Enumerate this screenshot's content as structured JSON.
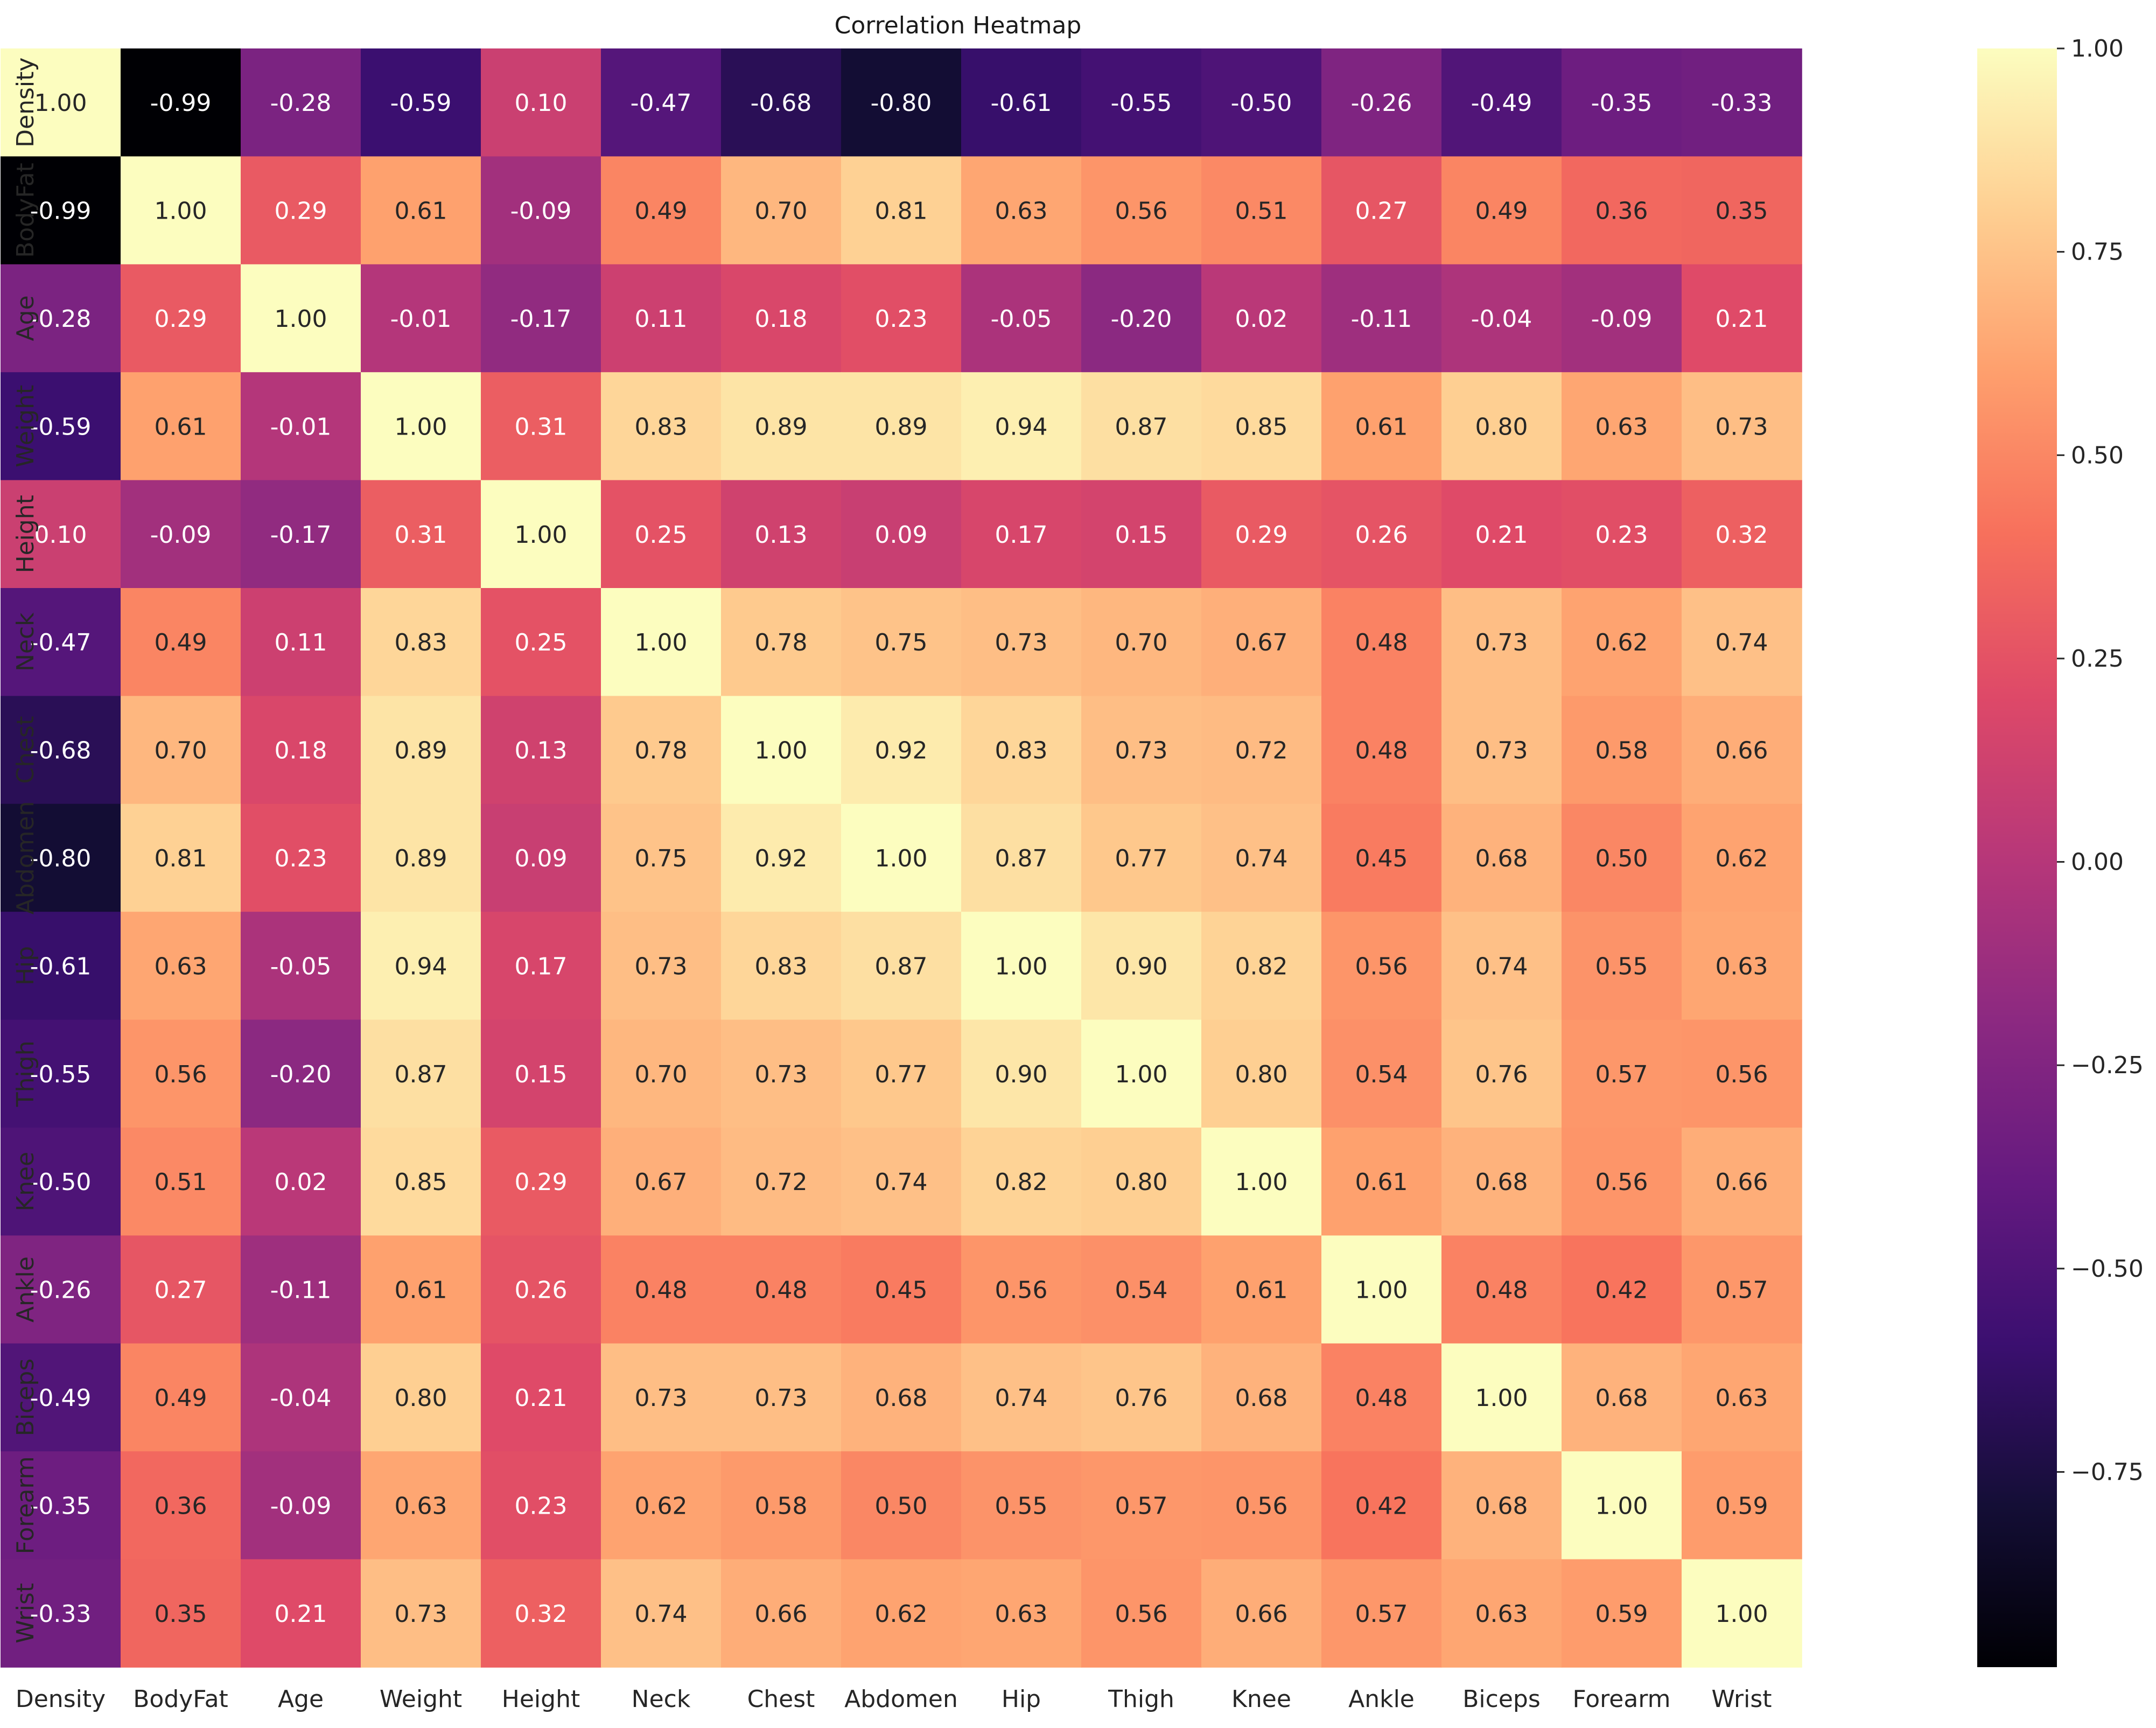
{
  "chart_data": {
    "type": "heatmap",
    "title": "Correlation Heatmap",
    "xlabel": "",
    "ylabel": "",
    "colormap": "magma",
    "color_range": [
      -0.99,
      1.0
    ],
    "colorbar_ticks": [
      1.0,
      0.75,
      0.5,
      0.25,
      0.0,
      -0.25,
      -0.5,
      -0.75
    ],
    "colorbar_tick_labels": [
      "1.00",
      "0.75",
      "0.50",
      "0.25",
      "0.00",
      "−0.25",
      "−0.50",
      "−0.75"
    ],
    "variables": [
      "Density",
      "BodyFat",
      "Age",
      "Weight",
      "Height",
      "Neck",
      "Chest",
      "Abdomen",
      "Hip",
      "Thigh",
      "Knee",
      "Ankle",
      "Biceps",
      "Forearm",
      "Wrist"
    ],
    "values": [
      [
        1.0,
        -0.99,
        -0.28,
        -0.59,
        0.1,
        -0.47,
        -0.68,
        -0.8,
        -0.61,
        -0.55,
        -0.5,
        -0.26,
        -0.49,
        -0.35,
        -0.33
      ],
      [
        -0.99,
        1.0,
        0.29,
        0.61,
        -0.09,
        0.49,
        0.7,
        0.81,
        0.63,
        0.56,
        0.51,
        0.27,
        0.49,
        0.36,
        0.35
      ],
      [
        -0.28,
        0.29,
        1.0,
        -0.01,
        -0.17,
        0.11,
        0.18,
        0.23,
        -0.05,
        -0.2,
        0.02,
        -0.11,
        -0.04,
        -0.09,
        0.21
      ],
      [
        -0.59,
        0.61,
        -0.01,
        1.0,
        0.31,
        0.83,
        0.89,
        0.89,
        0.94,
        0.87,
        0.85,
        0.61,
        0.8,
        0.63,
        0.73
      ],
      [
        0.1,
        -0.09,
        -0.17,
        0.31,
        1.0,
        0.25,
        0.13,
        0.09,
        0.17,
        0.15,
        0.29,
        0.26,
        0.21,
        0.23,
        0.32
      ],
      [
        -0.47,
        0.49,
        0.11,
        0.83,
        0.25,
        1.0,
        0.78,
        0.75,
        0.73,
        0.7,
        0.67,
        0.48,
        0.73,
        0.62,
        0.74
      ],
      [
        -0.68,
        0.7,
        0.18,
        0.89,
        0.13,
        0.78,
        1.0,
        0.92,
        0.83,
        0.73,
        0.72,
        0.48,
        0.73,
        0.58,
        0.66
      ],
      [
        -0.8,
        0.81,
        0.23,
        0.89,
        0.09,
        0.75,
        0.92,
        1.0,
        0.87,
        0.77,
        0.74,
        0.45,
        0.68,
        0.5,
        0.62
      ],
      [
        -0.61,
        0.63,
        -0.05,
        0.94,
        0.17,
        0.73,
        0.83,
        0.87,
        1.0,
        0.9,
        0.82,
        0.56,
        0.74,
        0.55,
        0.63
      ],
      [
        -0.55,
        0.56,
        -0.2,
        0.87,
        0.15,
        0.7,
        0.73,
        0.77,
        0.9,
        1.0,
        0.8,
        0.54,
        0.76,
        0.57,
        0.56
      ],
      [
        -0.5,
        0.51,
        0.02,
        0.85,
        0.29,
        0.67,
        0.72,
        0.74,
        0.82,
        0.8,
        1.0,
        0.61,
        0.68,
        0.56,
        0.66
      ],
      [
        -0.26,
        0.27,
        -0.11,
        0.61,
        0.26,
        0.48,
        0.48,
        0.45,
        0.56,
        0.54,
        0.61,
        1.0,
        0.48,
        0.42,
        0.57
      ],
      [
        -0.49,
        0.49,
        -0.04,
        0.8,
        0.21,
        0.73,
        0.73,
        0.68,
        0.74,
        0.76,
        0.68,
        0.48,
        1.0,
        0.68,
        0.63
      ],
      [
        -0.35,
        0.36,
        -0.09,
        0.63,
        0.23,
        0.62,
        0.58,
        0.5,
        0.55,
        0.57,
        0.56,
        0.42,
        0.68,
        1.0,
        0.59
      ],
      [
        -0.33,
        0.35,
        0.21,
        0.73,
        0.32,
        0.74,
        0.66,
        0.62,
        0.63,
        0.56,
        0.66,
        0.57,
        0.63,
        0.59,
        1.0
      ]
    ]
  }
}
